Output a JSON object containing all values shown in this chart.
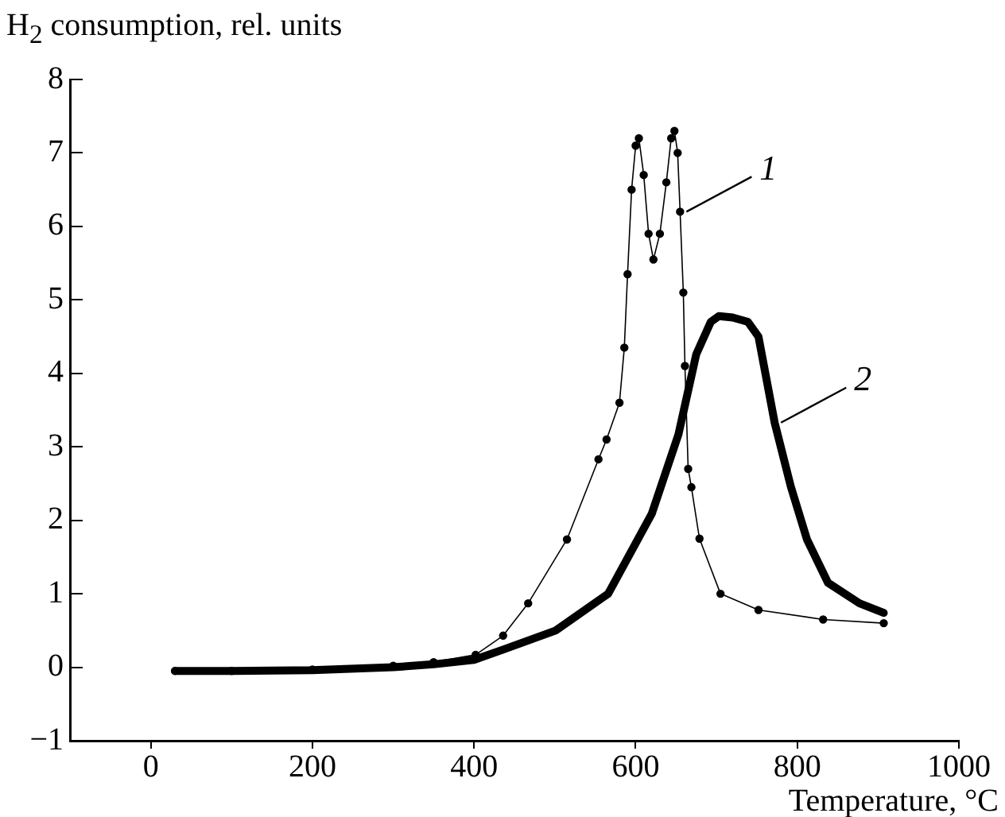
{
  "chart_data": {
    "type": "line",
    "xlabel": "Temperature, °C",
    "ylabel": "H$_{2}$ consumption, rel. units",
    "xlim": [
      -100,
      1000
    ],
    "xticks": [
      0,
      200,
      400,
      600,
      800,
      1000
    ],
    "ylim": [
      -1,
      8
    ],
    "yticks": [
      -1,
      0,
      1,
      2,
      3,
      4,
      5,
      6,
      7,
      8
    ],
    "grid": false,
    "legend": false,
    "series": [
      {
        "name": "1",
        "color": "#000000",
        "marker": "circle",
        "x": [
          30,
          100,
          200,
          300,
          350,
          402,
          436,
          467,
          515,
          554,
          564,
          580,
          586,
          590,
          595,
          600,
          604,
          610,
          616,
          622,
          630,
          638,
          644,
          648,
          652,
          655,
          659,
          661,
          665,
          669,
          679,
          705,
          752,
          832,
          907
        ],
        "values": [
          -0.05,
          -0.05,
          -0.03,
          0.02,
          0.07,
          0.17,
          0.43,
          0.87,
          1.74,
          2.83,
          3.1,
          3.6,
          4.35,
          5.35,
          6.5,
          7.1,
          7.2,
          6.7,
          5.9,
          5.55,
          5.9,
          6.6,
          7.2,
          7.3,
          7.0,
          6.2,
          5.1,
          4.1,
          2.7,
          2.45,
          1.75,
          1.0,
          0.78,
          0.65,
          0.6
        ]
      },
      {
        "name": "2",
        "color": "#000000",
        "marker": "none",
        "x": [
          30,
          100,
          200,
          300,
          350,
          400,
          436,
          501,
          566,
          620,
          653,
          675,
          693,
          703,
          720,
          739,
          752,
          772,
          792,
          812,
          838,
          877,
          907
        ],
        "values": [
          -0.05,
          -0.05,
          -0.04,
          0.0,
          0.04,
          0.1,
          0.24,
          0.5,
          1.0,
          2.09,
          3.17,
          4.26,
          4.7,
          4.78,
          4.76,
          4.7,
          4.5,
          3.33,
          2.46,
          1.74,
          1.15,
          0.87,
          0.74
        ]
      }
    ]
  }
}
